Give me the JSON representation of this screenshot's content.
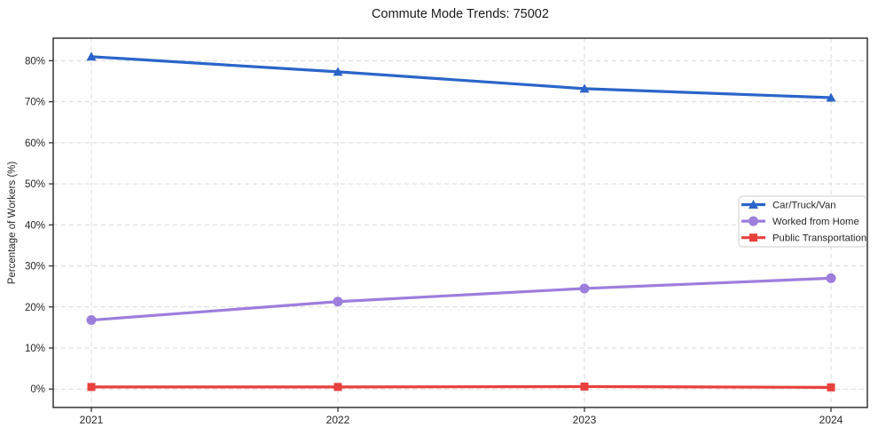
{
  "chart_data": {
    "type": "line",
    "title": "Commute Mode Trends: 75002",
    "xlabel": "",
    "ylabel": "Percentage of Workers (%)",
    "x": [
      2021,
      2022,
      2023,
      2024
    ],
    "xtick_labels": [
      "2021",
      "2022",
      "2023",
      "2024"
    ],
    "yticks": [
      0,
      10,
      20,
      30,
      40,
      50,
      60,
      70,
      80
    ],
    "ytick_labels": [
      "0%",
      "10%",
      "20%",
      "30%",
      "40%",
      "50%",
      "60%",
      "70%",
      "80%"
    ],
    "ylim": [
      -4.5,
      85.5
    ],
    "grid": true,
    "grid_style": "dashed",
    "legend_position": "center-right",
    "series": [
      {
        "name": "Car/Truck/Van",
        "color": "#2b65c9",
        "marker": "triangle",
        "values": [
          81,
          77.3,
          73.2,
          71
        ]
      },
      {
        "name": "Worked from Home",
        "color": "#9d7edd",
        "marker": "circle",
        "values": [
          16.8,
          21.3,
          24.5,
          27
        ]
      },
      {
        "name": "Public Transportation",
        "color": "#e8403c",
        "marker": "square",
        "values": [
          0.5,
          0.5,
          0.6,
          0.4
        ]
      }
    ],
    "colors": {
      "grid": "#d9d9d9",
      "spine": "#262626",
      "text": "#262626",
      "legend_border": "#cccccc",
      "background": "#ffffff"
    }
  }
}
